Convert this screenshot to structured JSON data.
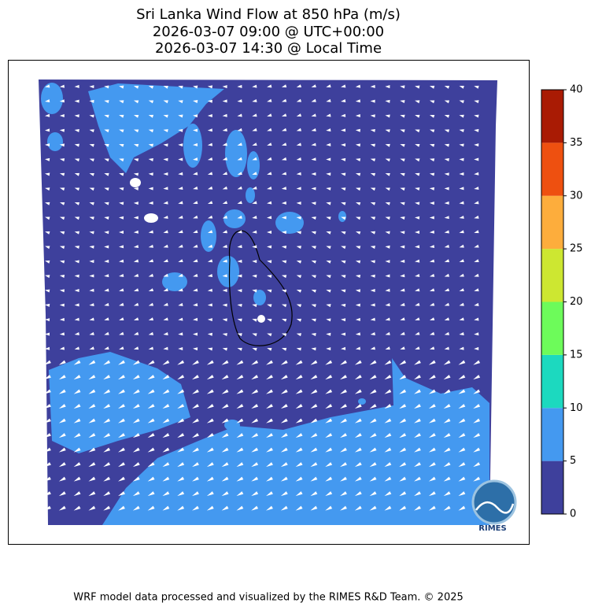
{
  "title_lines": [
    "Sri Lanka Wind Flow at 850 hPa (m/s)",
    "2026-03-07 09:00 @ UTC+00:00",
    "2026-03-07 14:30 @ Local Time"
  ],
  "colorbar": {
    "ticks": [
      0,
      5,
      10,
      15,
      20,
      25,
      30,
      35,
      40
    ],
    "colors": [
      "#3e409c",
      "#4499f0",
      "#1cd9bf",
      "#6dfb5a",
      "#cde731",
      "#fdad3c",
      "#ee5010",
      "#a91b04"
    ]
  },
  "logo": "RIMES",
  "footer": "WRF model data processed and visualized by the RIMES R&D Team. © 2025"
}
